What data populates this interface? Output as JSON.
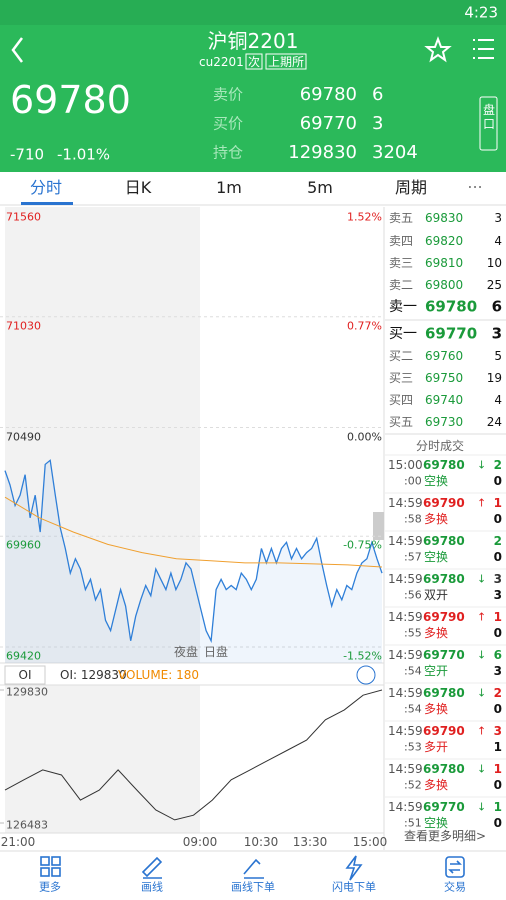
{
  "status_bar": {
    "time": "4:23"
  },
  "header": {
    "title": "沪铜2201",
    "code": "cu2201",
    "tag1": "次",
    "tag2": "上期所"
  },
  "quote": {
    "last": 69780,
    "change": -710,
    "change_pct": "-1.01%",
    "ask_label": "卖价",
    "ask": 69780,
    "ask_vol": 6,
    "bid_label": "买价",
    "bid": 69770,
    "bid_vol": 3,
    "oi_label": "持仓",
    "oi": 129830,
    "oi_change": 3204,
    "panel_button": "盘口"
  },
  "tabs": [
    "分时",
    "日K",
    "1m",
    "5m",
    "周期"
  ],
  "chart_data": [
    {
      "type": "line",
      "ylim": [
        69420,
        71560
      ],
      "yticks": [
        71560,
        71030,
        70490,
        69960,
        69420
      ],
      "pct_ticks": [
        "1.52%",
        "0.77%",
        "0.00%",
        "-0.75%",
        "-1.52%"
      ],
      "pct_colors": [
        "#e02020",
        "#e02020",
        "#333333",
        "#1a9a3a",
        "#1a9a3a"
      ],
      "tick_colors": [
        "#e02020",
        "#e02020",
        "#333333",
        "#1a9a3a",
        "#1a9a3a"
      ],
      "grid": true,
      "session_labels": [
        "夜盘",
        "日盘"
      ],
      "x_labels": [
        "21:00",
        "09:00",
        "10:30",
        "13:30",
        "15:00"
      ],
      "series": [
        {
          "color": "#2f7fd8",
          "values": [
            70280,
            70210,
            70110,
            70160,
            70260,
            70050,
            70160,
            69980,
            70310,
            70330,
            70160,
            70000,
            69900,
            69780,
            69850,
            69800,
            69700,
            69750,
            69650,
            69700,
            69550,
            69500,
            69600,
            69700,
            69620,
            69450,
            69570,
            69650,
            69720,
            69670,
            69800,
            69750,
            69700,
            69780,
            69700,
            69750,
            69830,
            69800,
            69700,
            69600,
            69500,
            69450,
            69700,
            69750,
            69700,
            69720,
            69700,
            69780,
            69750,
            69700,
            69750,
            69900,
            69830,
            69900,
            69830,
            69900,
            69930,
            69850,
            69900,
            69850,
            69880,
            69900,
            69950,
            69830,
            69720,
            69620,
            69700,
            69650,
            69720,
            69700,
            69780,
            69830,
            69850,
            69930,
            69850,
            69780
          ]
        },
        {
          "color": "#f0a030",
          "values": [
            70150,
            70050,
            69980,
            69920,
            69880,
            69850,
            69840,
            69830,
            69830,
            69825,
            69820,
            69810
          ]
        }
      ]
    },
    {
      "type": "line",
      "tab": "OI",
      "oi_label": "OI: 129830",
      "volume_label": "VOLUME: 180",
      "ylim": [
        126483,
        129830
      ],
      "yticks": [
        129830,
        126483
      ],
      "color": "#333333",
      "values": [
        127310,
        127570,
        127820,
        127690,
        127060,
        127310,
        127820,
        127310,
        126810,
        126560,
        126680,
        127060,
        127570,
        127820,
        128070,
        128320,
        128570,
        129080,
        129330,
        129700,
        129830
      ]
    }
  ],
  "order_book": {
    "asks": [
      {
        "label": "卖五",
        "price": 69830,
        "volume": 3
      },
      {
        "label": "卖四",
        "price": 69820,
        "volume": 4
      },
      {
        "label": "卖三",
        "price": 69810,
        "volume": 10
      },
      {
        "label": "卖二",
        "price": 69800,
        "volume": 25
      },
      {
        "label": "卖一",
        "price": 69780,
        "volume": 6
      }
    ],
    "bids": [
      {
        "label": "买一",
        "price": 69770,
        "volume": 3
      },
      {
        "label": "买二",
        "price": 69760,
        "volume": 5
      },
      {
        "label": "买三",
        "price": 69750,
        "volume": 19
      },
      {
        "label": "买四",
        "price": 69740,
        "volume": 4
      },
      {
        "label": "买五",
        "price": 69730,
        "volume": 24
      }
    ]
  },
  "trades": {
    "title": "分时成交",
    "more": "查看更多明细>",
    "rows": [
      {
        "time": "15:00",
        "sec": ":00",
        "price": 69780,
        "arrow": "↓",
        "qty": 2,
        "type": "空换",
        "oi_chg": 0,
        "price_color": "#1a9a3a",
        "type_color": "#1a9a3a"
      },
      {
        "time": "14:59",
        "sec": ":58",
        "price": 69790,
        "arrow": "↑",
        "qty": 1,
        "type": "多换",
        "oi_chg": 0,
        "price_color": "#e02020",
        "type_color": "#e02020"
      },
      {
        "time": "14:59",
        "sec": ":57",
        "price": 69780,
        "qty": 2,
        "type": "空换",
        "oi_chg": 0,
        "price_color": "#1a9a3a",
        "type_color": "#1a9a3a"
      },
      {
        "time": "14:59",
        "sec": ":56",
        "price": 69780,
        "arrow": "↓",
        "qty": 3,
        "type": "双开",
        "oi_chg": 3,
        "price_color": "#1a9a3a",
        "type_color": "#333333"
      },
      {
        "time": "14:59",
        "sec": ":55",
        "price": 69790,
        "arrow": "↑",
        "qty": 1,
        "type": "多换",
        "oi_chg": 0,
        "price_color": "#e02020",
        "type_color": "#e02020"
      },
      {
        "time": "14:59",
        "sec": ":54",
        "price": 69770,
        "arrow": "↓",
        "qty": 6,
        "type": "空开",
        "oi_chg": 3,
        "price_color": "#1a9a3a",
        "type_color": "#1a9a3a"
      },
      {
        "time": "14:59",
        "sec": ":54",
        "price": 69780,
        "arrow": "↓",
        "qty": 2,
        "type": "多换",
        "oi_chg": 0,
        "price_color": "#1a9a3a",
        "type_color": "#e02020"
      },
      {
        "time": "14:59",
        "sec": ":53",
        "price": 69790,
        "arrow": "↑",
        "qty": 3,
        "type": "多开",
        "oi_chg": 1,
        "price_color": "#e02020",
        "type_color": "#e02020"
      },
      {
        "time": "14:59",
        "sec": ":52",
        "price": 69780,
        "arrow": "↓",
        "qty": 1,
        "type": "多换",
        "oi_chg": 0,
        "price_color": "#1a9a3a",
        "type_color": "#e02020"
      },
      {
        "time": "14:59",
        "sec": ":51",
        "price": 69770,
        "arrow": "↓",
        "qty": 1,
        "type": "空换",
        "oi_chg": 0,
        "price_color": "#1a9a3a",
        "type_color": "#1a9a3a"
      }
    ]
  },
  "footer": [
    "更多",
    "画线",
    "画线下单",
    "闪电下单",
    "交易"
  ]
}
